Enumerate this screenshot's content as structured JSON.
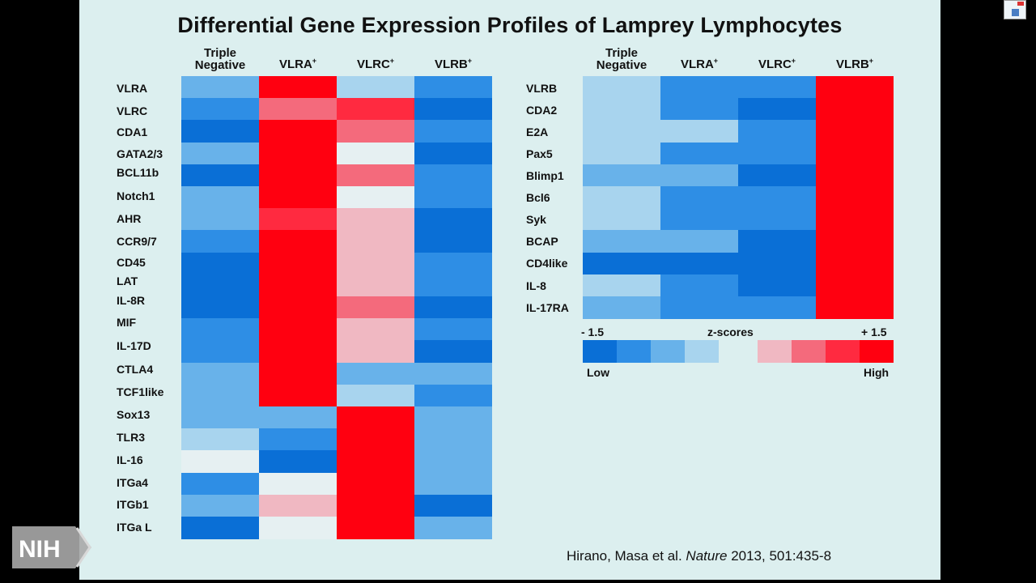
{
  "title": "Differential Gene Expression Profiles of Lamprey Lymphocytes",
  "citation": {
    "authors": "Hirano, Masa et al.",
    "journal": "Nature",
    "ref": "2013, 501:435-8"
  },
  "logo": {
    "text": "NIH"
  },
  "colors": {
    "slide_bg": "#dcefef",
    "z_neg_3": "#0a6fd6",
    "z_neg_2": "#2e8ee5",
    "z_neg_1": "#68b2ea",
    "z_neg_0": "#a8d4ee",
    "z_mid": "#e6f0f2",
    "z_pos_0": "#f0b8c2",
    "z_pos_1": "#f46a7c",
    "z_pos_2": "#ff2a40",
    "z_pos_3": "#ff0010"
  },
  "scale": {
    "low_value": "- 1.5",
    "label": "z-scores",
    "high_value": "+ 1.5",
    "low_text": "Low",
    "high_text": "High",
    "swatches": [
      "z_neg_3",
      "z_neg_2",
      "z_neg_1",
      "z_neg_0",
      "z_pos_0",
      "z_pos_1",
      "z_pos_2",
      "z_pos_3"
    ]
  },
  "chart_data": [
    {
      "type": "heatmap",
      "columns": [
        {
          "l1": "Triple",
          "l2": "Negative",
          "sup": ""
        },
        {
          "l1": "",
          "l2": "VLRA",
          "sup": "+"
        },
        {
          "l1": "",
          "l2": "VLRC",
          "sup": "+"
        },
        {
          "l1": "",
          "l2": "VLRB",
          "sup": "+"
        }
      ],
      "rows": [
        "VLRA",
        "VLRC",
        "CDA1",
        "GATA2/3",
        "BCL11b",
        "Notch1",
        "AHR",
        "CCR9/7",
        "CD45",
        "LAT",
        "IL-8R",
        "MIF",
        "IL-17D",
        "CTLA4",
        "TCF1like",
        "Sox13",
        "TLR3",
        "IL-16",
        "ITGa4",
        "ITGb1",
        "ITGa L"
      ],
      "values": [
        [
          -0.9,
          1.5,
          -0.3,
          -1.0
        ],
        [
          -1.1,
          0.8,
          1.4,
          -1.4
        ],
        [
          -1.3,
          1.5,
          0.7,
          -1.2
        ],
        [
          -0.8,
          1.5,
          0.0,
          -1.5
        ],
        [
          -1.3,
          1.5,
          0.6,
          -1.1
        ],
        [
          -0.9,
          1.5,
          0.1,
          -1.2
        ],
        [
          -0.8,
          1.4,
          0.3,
          -1.5
        ],
        [
          -1.1,
          1.5,
          0.3,
          -1.3
        ],
        [
          -1.4,
          1.5,
          0.3,
          -1.2
        ],
        [
          -1.4,
          1.5,
          0.3,
          -1.2
        ],
        [
          -1.3,
          1.5,
          0.6,
          -1.3
        ],
        [
          -1.0,
          1.5,
          0.2,
          -1.2
        ],
        [
          -1.1,
          1.5,
          0.2,
          -1.3
        ],
        [
          -0.8,
          1.5,
          -0.8,
          -0.8
        ],
        [
          -0.8,
          1.5,
          -0.5,
          -1.1
        ],
        [
          -0.7,
          -0.7,
          1.5,
          -0.8
        ],
        [
          -0.5,
          -1.1,
          1.5,
          -0.7
        ],
        [
          -0.1,
          -1.4,
          1.5,
          -0.8
        ],
        [
          -1.1,
          -0.2,
          1.5,
          -0.8
        ],
        [
          -0.9,
          0.2,
          1.5,
          -1.4
        ],
        [
          -1.4,
          0.0,
          1.5,
          -0.7
        ]
      ]
    },
    {
      "type": "heatmap",
      "columns": [
        {
          "l1": "Triple",
          "l2": "Negative",
          "sup": ""
        },
        {
          "l1": "",
          "l2": "VLRA",
          "sup": "+"
        },
        {
          "l1": "",
          "l2": "VLRC",
          "sup": "+"
        },
        {
          "l1": "",
          "l2": "VLRB",
          "sup": "+"
        }
      ],
      "rows": [
        "VLRB",
        "CDA2",
        "E2A",
        "Pax5",
        "Blimp1",
        "Bcl6",
        "Syk",
        "BCAP",
        "CD4like",
        "IL-8",
        "IL-17RA"
      ],
      "values": [
        [
          -0.6,
          -1.0,
          -1.2,
          1.5
        ],
        [
          -0.6,
          -1.0,
          -1.3,
          1.5
        ],
        [
          -0.6,
          -0.6,
          -1.1,
          1.5
        ],
        [
          -0.6,
          -1.0,
          -1.2,
          1.5
        ],
        [
          -0.7,
          -0.7,
          -1.4,
          1.5
        ],
        [
          -0.5,
          -1.2,
          -1.0,
          1.5
        ],
        [
          -0.5,
          -1.1,
          -1.2,
          1.5
        ],
        [
          -0.7,
          -0.8,
          -1.4,
          1.5
        ],
        [
          -1.3,
          -1.4,
          -1.3,
          1.5
        ],
        [
          -0.6,
          -1.0,
          -1.3,
          1.5
        ],
        [
          -0.8,
          -1.0,
          -1.0,
          1.5
        ]
      ]
    }
  ]
}
